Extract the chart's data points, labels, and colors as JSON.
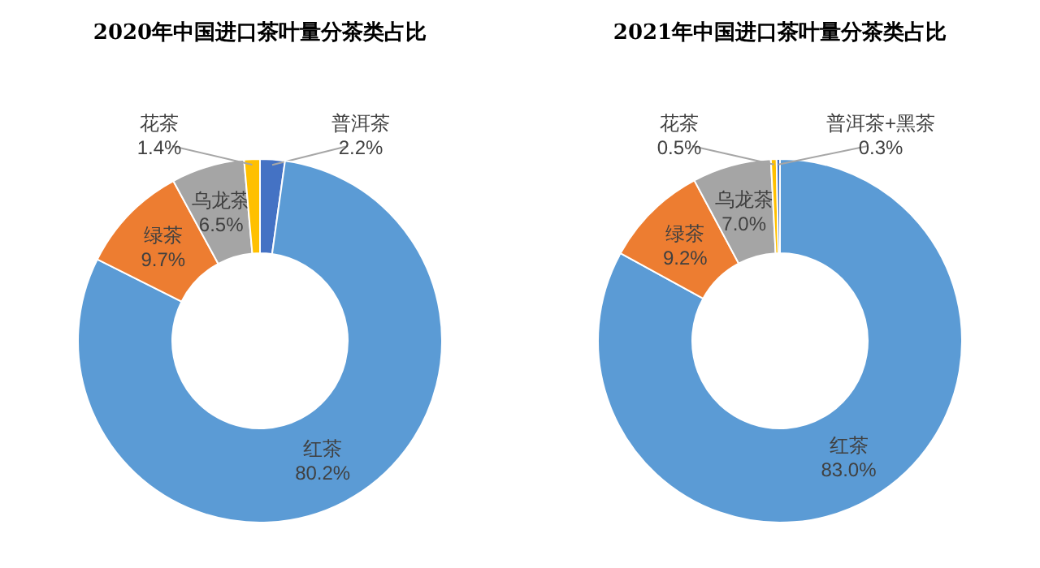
{
  "chart_data": [
    {
      "type": "donut",
      "title": "2020年中国进口茶叶量分茶类占比",
      "categories": [
        "普洱茶",
        "红茶",
        "绿茶",
        "乌龙茶",
        "花茶"
      ],
      "values": [
        2.2,
        80.2,
        9.7,
        6.5,
        1.4
      ],
      "value_labels": [
        "2.2%",
        "80.2%",
        "9.7%",
        "6.5%",
        "1.4%"
      ],
      "colors": [
        "#4472c4",
        "#5b9bd5",
        "#ed7d31",
        "#a5a5a5",
        "#ffc000"
      ]
    },
    {
      "type": "donut",
      "title": "2021年中国进口茶叶量分茶类占比",
      "categories": [
        "红茶",
        "绿茶",
        "乌龙茶",
        "花茶",
        "普洱茶+黑茶"
      ],
      "values": [
        83.0,
        9.2,
        7.0,
        0.5,
        0.3
      ],
      "value_labels": [
        "83.0%",
        "9.2%",
        "7.0%",
        "0.5%",
        "0.3%"
      ],
      "colors": [
        "#5b9bd5",
        "#ed7d31",
        "#a5a5a5",
        "#ffc000",
        "#4472c4"
      ]
    }
  ]
}
